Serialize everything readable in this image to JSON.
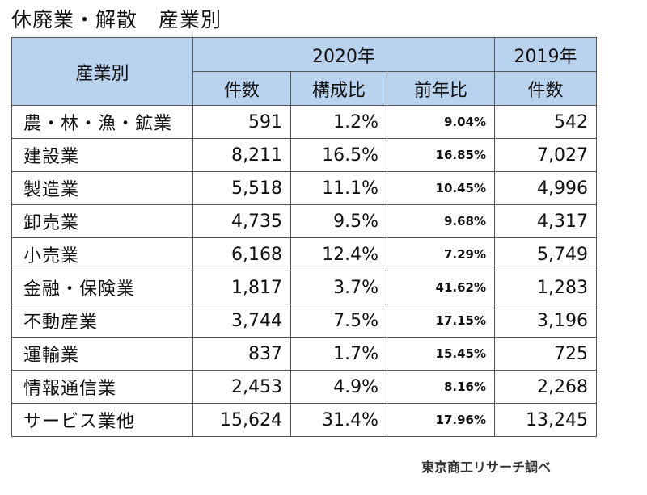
{
  "title": "休廃業・解散　産業別",
  "header": {
    "industry": "産業別",
    "year2020": "2020年",
    "year2019": "2019年",
    "count": "件数",
    "share": "構成比",
    "yoy": "前年比",
    "count2019": "件数"
  },
  "rows": [
    {
      "name": "農・林・漁・鉱業",
      "count2020": "591",
      "share": "1.2%",
      "yoy": "9.04%",
      "count2019": "542"
    },
    {
      "name": "建設業",
      "count2020": "8,211",
      "share": "16.5%",
      "yoy": "16.85%",
      "count2019": "7,027"
    },
    {
      "name": "製造業",
      "count2020": "5,518",
      "share": "11.1%",
      "yoy": "10.45%",
      "count2019": "4,996"
    },
    {
      "name": "卸売業",
      "count2020": "4,735",
      "share": "9.5%",
      "yoy": "9.68%",
      "count2019": "4,317"
    },
    {
      "name": "小売業",
      "count2020": "6,168",
      "share": "12.4%",
      "yoy": "7.29%",
      "count2019": "5,749"
    },
    {
      "name": "金融・保険業",
      "count2020": "1,817",
      "share": "3.7%",
      "yoy": "41.62%",
      "count2019": "1,283"
    },
    {
      "name": "不動産業",
      "count2020": "3,744",
      "share": "7.5%",
      "yoy": "17.15%",
      "count2019": "3,196"
    },
    {
      "name": "運輸業",
      "count2020": "837",
      "share": "1.7%",
      "yoy": "15.45%",
      "count2019": "725"
    },
    {
      "name": "情報通信業",
      "count2020": "2,453",
      "share": "4.9%",
      "yoy": "8.16%",
      "count2019": "2,268"
    },
    {
      "name": "サービス業他",
      "count2020": "15,624",
      "share": "31.4%",
      "yoy": "17.96%",
      "count2019": "13,245"
    }
  ],
  "source": "東京商工リサーチ調べ"
}
